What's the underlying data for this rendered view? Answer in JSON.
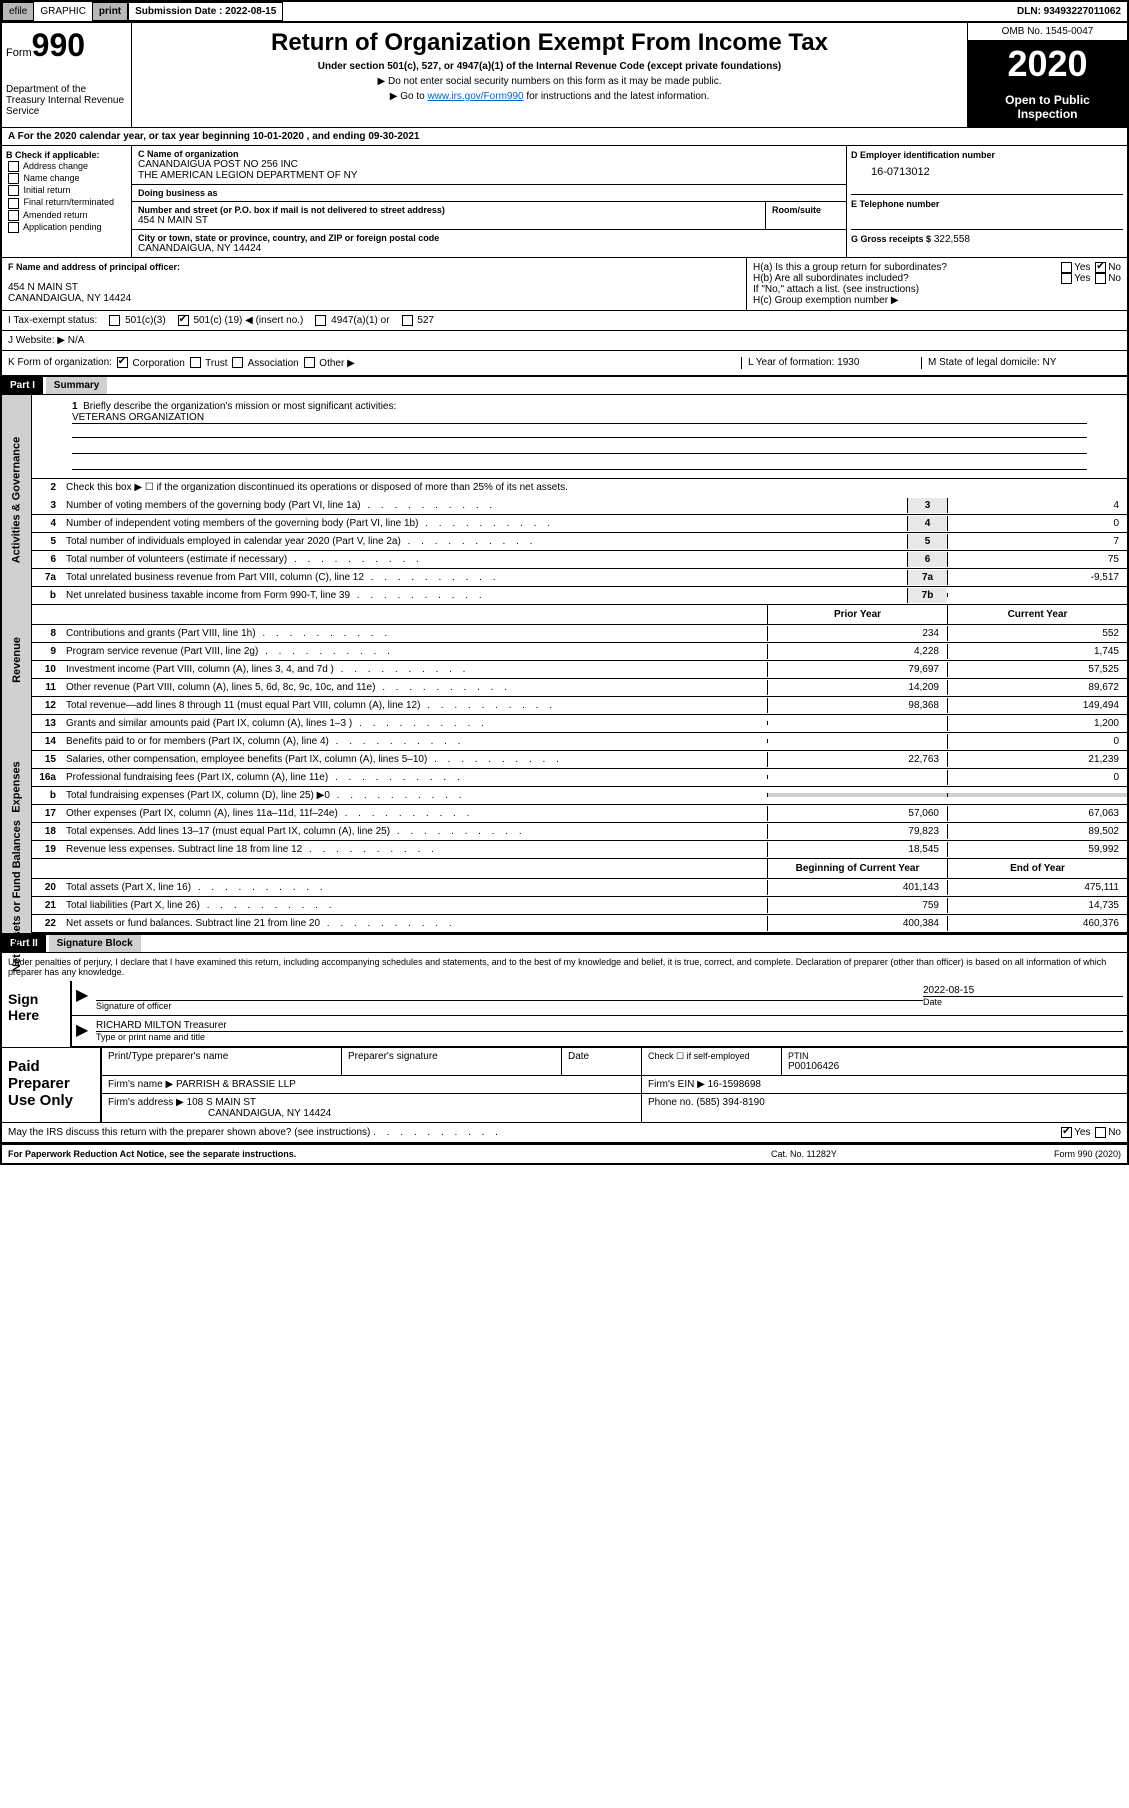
{
  "top_bar": {
    "efile": "efile",
    "graphic": "GRAPHIC",
    "print": "print",
    "submission_label": "Submission Date : 2022-08-15",
    "dln": "DLN: 93493227011062"
  },
  "header": {
    "form_label": "Form",
    "form_number": "990",
    "dept": "Department of the Treasury\nInternal Revenue Service",
    "title": "Return of Organization Exempt From Income Tax",
    "subtitle": "Under section 501(c), 527, or 4947(a)(1) of the Internal Revenue Code (except private foundations)",
    "notice1": "▶ Do not enter social security numbers on this form as it may be made public.",
    "notice2_pre": "▶ Go to ",
    "notice2_link": "www.irs.gov/Form990",
    "notice2_post": " for instructions and the latest information.",
    "omb": "OMB No. 1545-0047",
    "year": "2020",
    "open_public": "Open to Public Inspection"
  },
  "period": "A For the 2020 calendar year, or tax year beginning 10-01-2020     , and ending 09-30-2021",
  "section_b": {
    "label": "B Check if applicable:",
    "items": [
      "Address change",
      "Name change",
      "Initial return",
      "Final return/terminated",
      "Amended return",
      "Application pending"
    ]
  },
  "section_c": {
    "name_label": "C Name of organization",
    "name1": "CANANDAIGUA POST NO 256 INC",
    "name2": "THE AMERICAN LEGION DEPARTMENT OF NY",
    "dba_label": "Doing business as",
    "addr_label": "Number and street (or P.O. box if mail is not delivered to street address)",
    "addr": "454 N MAIN ST",
    "room_label": "Room/suite",
    "city_label": "City or town, state or province, country, and ZIP or foreign postal code",
    "city": "CANANDAIGUA, NY  14424"
  },
  "section_d": {
    "label": "D Employer identification number",
    "ein": "16-0713012"
  },
  "section_e": {
    "label": "E Telephone number"
  },
  "section_g": {
    "label": "G Gross receipts $",
    "value": "322,558"
  },
  "section_f": {
    "label": "F  Name and address of principal officer:",
    "addr1": "454 N MAIN ST",
    "addr2": "CANANDAIGUA, NY  14424"
  },
  "section_h": {
    "ha": "H(a)  Is this a group return for subordinates?",
    "hb": "H(b)  Are all subordinates included?",
    "hb_note": "If \"No,\" attach a list. (see instructions)",
    "hc": "H(c)  Group exemption number ▶"
  },
  "section_i": {
    "label": "I   Tax-exempt status:",
    "opt1": "501(c)(3)",
    "opt2_pre": "501(c) (",
    "opt2_val": "19",
    "opt2_post": ") ◀ (insert no.)",
    "opt3": "4947(a)(1) or",
    "opt4": "527"
  },
  "section_j": {
    "label": "J   Website: ▶",
    "value": "N/A"
  },
  "section_k": {
    "label": "K Form of organization:",
    "opts": [
      "Corporation",
      "Trust",
      "Association",
      "Other ▶"
    ]
  },
  "section_l": {
    "label": "L Year of formation:",
    "value": "1930"
  },
  "section_m": {
    "label": "M State of legal domicile:",
    "value": "NY"
  },
  "part1": {
    "header": "Part I",
    "title": "Summary",
    "line1_label": "Briefly describe the organization's mission or most significant activities:",
    "line1_value": "VETERANS ORGANIZATION",
    "line2": "Check this box ▶ ☐  if the organization discontinued its operations or disposed of more than 25% of its net assets.",
    "sections": {
      "governance": "Activities & Governance",
      "revenue": "Revenue",
      "expenses": "Expenses",
      "netassets": "Net Assets or Fund Balances"
    },
    "col_headers": {
      "prior": "Prior Year",
      "current": "Current Year",
      "begin": "Beginning of Current Year",
      "end": "End of Year"
    },
    "lines_gov": [
      {
        "n": "3",
        "t": "Number of voting members of the governing body (Part VI, line 1a)",
        "box": "3",
        "v": "4"
      },
      {
        "n": "4",
        "t": "Number of independent voting members of the governing body (Part VI, line 1b)",
        "box": "4",
        "v": "0"
      },
      {
        "n": "5",
        "t": "Total number of individuals employed in calendar year 2020 (Part V, line 2a)",
        "box": "5",
        "v": "7"
      },
      {
        "n": "6",
        "t": "Total number of volunteers (estimate if necessary)",
        "box": "6",
        "v": "75"
      },
      {
        "n": "7a",
        "t": "Total unrelated business revenue from Part VIII, column (C), line 12",
        "box": "7a",
        "v": "-9,517"
      },
      {
        "n": "b",
        "t": "Net unrelated business taxable income from Form 990-T, line 39",
        "box": "7b",
        "v": ""
      }
    ],
    "lines_rev": [
      {
        "n": "8",
        "t": "Contributions and grants (Part VIII, line 1h)",
        "py": "234",
        "cy": "552"
      },
      {
        "n": "9",
        "t": "Program service revenue (Part VIII, line 2g)",
        "py": "4,228",
        "cy": "1,745"
      },
      {
        "n": "10",
        "t": "Investment income (Part VIII, column (A), lines 3, 4, and 7d )",
        "py": "79,697",
        "cy": "57,525"
      },
      {
        "n": "11",
        "t": "Other revenue (Part VIII, column (A), lines 5, 6d, 8c, 9c, 10c, and 11e)",
        "py": "14,209",
        "cy": "89,672"
      },
      {
        "n": "12",
        "t": "Total revenue—add lines 8 through 11 (must equal Part VIII, column (A), line 12)",
        "py": "98,368",
        "cy": "149,494"
      }
    ],
    "lines_exp": [
      {
        "n": "13",
        "t": "Grants and similar amounts paid (Part IX, column (A), lines 1–3 )",
        "py": "",
        "cy": "1,200"
      },
      {
        "n": "14",
        "t": "Benefits paid to or for members (Part IX, column (A), line 4)",
        "py": "",
        "cy": "0"
      },
      {
        "n": "15",
        "t": "Salaries, other compensation, employee benefits (Part IX, column (A), lines 5–10)",
        "py": "22,763",
        "cy": "21,239"
      },
      {
        "n": "16a",
        "t": "Professional fundraising fees (Part IX, column (A), line 11e)",
        "py": "",
        "cy": "0"
      },
      {
        "n": "b",
        "t": "Total fundraising expenses (Part IX, column (D), line 25) ▶0",
        "py": "",
        "cy": "",
        "shaded": true
      },
      {
        "n": "17",
        "t": "Other expenses (Part IX, column (A), lines 11a–11d, 11f–24e)",
        "py": "57,060",
        "cy": "67,063"
      },
      {
        "n": "18",
        "t": "Total expenses. Add lines 13–17 (must equal Part IX, column (A), line 25)",
        "py": "79,823",
        "cy": "89,502"
      },
      {
        "n": "19",
        "t": "Revenue less expenses. Subtract line 18 from line 12",
        "py": "18,545",
        "cy": "59,992"
      }
    ],
    "lines_net": [
      {
        "n": "20",
        "t": "Total assets (Part X, line 16)",
        "py": "401,143",
        "cy": "475,111"
      },
      {
        "n": "21",
        "t": "Total liabilities (Part X, line 26)",
        "py": "759",
        "cy": "14,735"
      },
      {
        "n": "22",
        "t": "Net assets or fund balances. Subtract line 21 from line 20",
        "py": "400,384",
        "cy": "460,376"
      }
    ]
  },
  "part2": {
    "header": "Part II",
    "title": "Signature Block",
    "declaration": "Under penalties of perjury, I declare that I have examined this return, including accompanying schedules and statements, and to the best of my knowledge and belief, it is true, correct, and complete. Declaration of preparer (other than officer) is based on all information of which preparer has any knowledge.",
    "sign_here": "Sign Here",
    "sig_officer": "Signature of officer",
    "sig_date_label": "Date",
    "sig_date": "2022-08-15",
    "sig_name": "RICHARD MILTON  Treasurer",
    "sig_name_label": "Type or print name and title",
    "paid_prep": "Paid Preparer Use Only",
    "prep_name_label": "Print/Type preparer's name",
    "prep_sig_label": "Preparer's signature",
    "prep_date_label": "Date",
    "prep_check": "Check ☐  if self-employed",
    "ptin_label": "PTIN",
    "ptin": "P00106426",
    "firm_name_label": "Firm's name      ▶",
    "firm_name": "PARRISH & BRASSIE LLP",
    "firm_ein_label": "Firm's EIN ▶",
    "firm_ein": "16-1598698",
    "firm_addr_label": "Firm's address ▶",
    "firm_addr1": "108 S MAIN ST",
    "firm_addr2": "CANANDAIGUA, NY  14424",
    "phone_label": "Phone no.",
    "phone": "(585) 394-8190",
    "discuss": "May the IRS discuss this return with the preparer shown above? (see instructions)"
  },
  "footer": {
    "left": "For Paperwork Reduction Act Notice, see the separate instructions.",
    "mid": "Cat. No. 11282Y",
    "right": "Form 990 (2020)"
  }
}
